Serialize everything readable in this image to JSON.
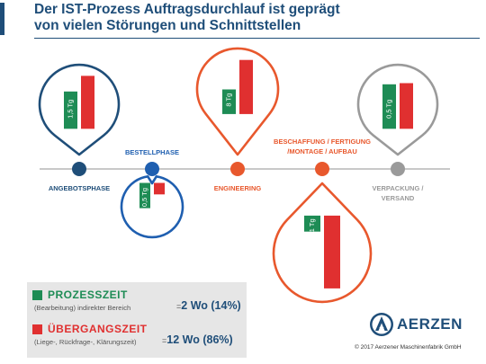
{
  "title_line1": "Der IST-Prozess Auftragsdurchlauf ist geprägt",
  "title_line2": "von vielen Störungen und Schnittstellen",
  "colors": {
    "navy": "#1f4e79",
    "blue": "#1f5fb0",
    "orange": "#e8582d",
    "gray": "#9a9a9a",
    "green": "#1e8c55",
    "red": "#e03030",
    "timeline": "#c8c8c8"
  },
  "phases": [
    {
      "label_lines": [
        "ANGEBOTSPHASE"
      ],
      "color": "navy",
      "bubble": "up",
      "bar_value": "1,5 Tg",
      "green_level": 0.62,
      "red_level": 0.88
    },
    {
      "label_lines": [
        "BESTELLPHASE"
      ],
      "color": "blue",
      "bubble": "down",
      "bar_value": "0,5 Tg",
      "green_level": 0.55,
      "red_level": 0.25
    },
    {
      "label_lines": [
        "ENGINEERING"
      ],
      "color": "orange",
      "bubble": "up",
      "bar_value": "8 Tg",
      "green_level": 0.4,
      "red_level": 0.88
    },
    {
      "label_lines": [
        "BESCHAFFUNG / FERTIGUNG",
        "/MONTAGE / AUFBAU"
      ],
      "color": "orange",
      "bubble": "down",
      "bar_value": "1 Tg",
      "green_level": 0.22,
      "red_level": 1.0
    },
    {
      "label_lines": [
        "VERPACKUNG /",
        "VERSAND"
      ],
      "color": "gray",
      "bubble": "up",
      "bar_value": "0,5 Tg",
      "green_level": 0.74,
      "red_level": 0.76
    }
  ],
  "legend": {
    "process_label": "PROZESSZEIT",
    "process_desc": "(Bearbeitung) indirekter Bereich",
    "process_eq": "=",
    "process_value": "2 Wo (14%)",
    "transition_label": "ÜBERGANGSZEIT",
    "transition_desc": "(Liege-, Rückfrage-, Klärungszeit)",
    "transition_eq": "=",
    "transition_value": "12 Wo (86%)"
  },
  "logo": {
    "name": "AERZEN",
    "icon": "aerzen-logo-icon"
  },
  "copyright": "© 2017 Aerzener Maschinenfabrik GmbH"
}
